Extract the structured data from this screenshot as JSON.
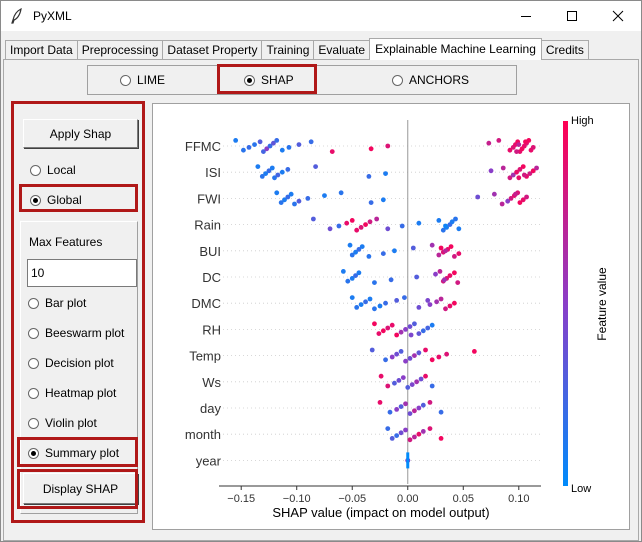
{
  "window": {
    "title": "PyXML"
  },
  "tabs": [
    {
      "label": "Import Data"
    },
    {
      "label": "Preprocessing"
    },
    {
      "label": "Dataset Property"
    },
    {
      "label": "Training"
    },
    {
      "label": "Evaluate"
    },
    {
      "label": "Explainable Machine Learning",
      "active": true
    },
    {
      "label": "Credits"
    }
  ],
  "method_selector": {
    "options": [
      "LIME",
      "SHAP",
      "ANCHORS"
    ],
    "selected": "SHAP"
  },
  "left_panel": {
    "apply_button": "Apply Shap",
    "scope_options": [
      "Local",
      "Global"
    ],
    "scope_selected": "Global",
    "max_features_label": "Max Features",
    "max_features_value": "10",
    "plot_types": [
      "Bar plot",
      "Beeswarm plot",
      "Decision plot",
      "Heatmap plot",
      "Violin plot",
      "Summary plot"
    ],
    "plot_selected": "Summary plot",
    "display_button": "Display SHAP"
  },
  "colors": {
    "highlight": "#b01818",
    "shap_low": "#008bfb",
    "shap_high": "#ff0052"
  },
  "chart_data": {
    "type": "scatter",
    "subtype": "shap-beeswarm",
    "features": [
      "FFMC",
      "ISI",
      "FWI",
      "Rain",
      "BUI",
      "DC",
      "DMC",
      "RH",
      "Temp",
      "Ws",
      "day",
      "month",
      "year"
    ],
    "xlabel": "SHAP value (impact on model output)",
    "xlim": [
      -0.17,
      0.12
    ],
    "xticks": [
      -0.15,
      -0.1,
      -0.05,
      0.0,
      0.05,
      0.1
    ],
    "xtick_labels": [
      "−0.15",
      "−0.10",
      "−0.05",
      "0.00",
      "0.05",
      "0.10"
    ],
    "colorbar": {
      "label": "Feature value",
      "high": "High",
      "low": "Low"
    },
    "series": [
      {
        "feature": "FFMC",
        "points": [
          [
            -0.155,
            0.1
          ],
          [
            -0.148,
            0.15
          ],
          [
            -0.143,
            0.2
          ],
          [
            -0.138,
            0.15
          ],
          [
            -0.133,
            0.3
          ],
          [
            -0.13,
            0.25
          ],
          [
            -0.127,
            0.5
          ],
          [
            -0.124,
            0.2
          ],
          [
            -0.121,
            0.35
          ],
          [
            -0.118,
            0.2
          ],
          [
            -0.113,
            0.1
          ],
          [
            -0.107,
            0.15
          ],
          [
            -0.098,
            0.3
          ],
          [
            -0.087,
            0.2
          ],
          [
            -0.068,
            0.9
          ],
          [
            -0.033,
            0.95
          ],
          [
            -0.018,
            0.85
          ],
          [
            0.073,
            0.75
          ],
          [
            0.082,
            0.8
          ],
          [
            0.092,
            0.9
          ],
          [
            0.095,
            0.85
          ],
          [
            0.097,
            0.9
          ],
          [
            0.099,
            0.95
          ],
          [
            0.101,
            0.9
          ],
          [
            0.103,
            0.95
          ],
          [
            0.105,
            0.9
          ],
          [
            0.107,
            0.85
          ],
          [
            0.109,
            0.95
          ],
          [
            0.111,
            0.9
          ],
          [
            0.113,
            0.85
          ],
          [
            0.1,
            0.7
          ],
          [
            0.106,
            0.95
          ],
          [
            0.098,
            0.8
          ]
        ]
      },
      {
        "feature": "ISI",
        "points": [
          [
            -0.135,
            0.1
          ],
          [
            -0.131,
            0.15
          ],
          [
            -0.128,
            0.1
          ],
          [
            -0.125,
            0.2
          ],
          [
            -0.122,
            0.1
          ],
          [
            -0.12,
            0.15
          ],
          [
            -0.117,
            0.25
          ],
          [
            -0.113,
            0.1
          ],
          [
            -0.108,
            0.2
          ],
          [
            -0.083,
            0.3
          ],
          [
            -0.035,
            0.2
          ],
          [
            -0.02,
            0.1
          ],
          [
            0.075,
            0.5
          ],
          [
            0.086,
            0.7
          ],
          [
            0.092,
            0.8
          ],
          [
            0.095,
            0.6
          ],
          [
            0.098,
            0.9
          ],
          [
            0.101,
            0.85
          ],
          [
            0.104,
            0.95
          ],
          [
            0.107,
            0.9
          ],
          [
            0.11,
            0.8
          ],
          [
            0.113,
            0.95
          ],
          [
            0.116,
            0.7
          ],
          [
            0.1,
            0.9
          ],
          [
            0.105,
            0.8
          ]
        ]
      },
      {
        "feature": "FWI",
        "points": [
          [
            -0.118,
            0.1
          ],
          [
            -0.114,
            0.15
          ],
          [
            -0.111,
            0.1
          ],
          [
            -0.108,
            0.2
          ],
          [
            -0.105,
            0.1
          ],
          [
            -0.102,
            0.15
          ],
          [
            -0.098,
            0.3
          ],
          [
            -0.09,
            0.2
          ],
          [
            -0.075,
            0.1
          ],
          [
            -0.06,
            0.15
          ],
          [
            -0.033,
            0.2
          ],
          [
            -0.022,
            0.1
          ],
          [
            0.063,
            0.4
          ],
          [
            0.078,
            0.6
          ],
          [
            0.085,
            0.7
          ],
          [
            0.09,
            0.5
          ],
          [
            0.093,
            0.8
          ],
          [
            0.096,
            0.9
          ],
          [
            0.099,
            0.85
          ],
          [
            0.101,
            0.95
          ],
          [
            0.104,
            0.9
          ],
          [
            0.107,
            0.8
          ],
          [
            0.097,
            0.75
          ]
        ]
      },
      {
        "feature": "Rain",
        "points": [
          [
            -0.085,
            0.3
          ],
          [
            -0.07,
            0.4
          ],
          [
            -0.062,
            0.2
          ],
          [
            -0.055,
            0.9
          ],
          [
            -0.05,
            0.95
          ],
          [
            -0.046,
            0.9
          ],
          [
            -0.042,
            0.85
          ],
          [
            -0.038,
            0.95
          ],
          [
            -0.034,
            0.8
          ],
          [
            -0.028,
            0.7
          ],
          [
            -0.018,
            0.4
          ],
          [
            -0.005,
            0.2
          ],
          [
            0.01,
            0.1
          ],
          [
            0.028,
            0.1
          ],
          [
            0.032,
            0.15
          ],
          [
            0.035,
            0.1
          ],
          [
            0.038,
            0.2
          ],
          [
            0.04,
            0.1
          ],
          [
            0.043,
            0.15
          ],
          [
            0.046,
            0.1
          ],
          [
            0.034,
            0.05
          ]
        ]
      },
      {
        "feature": "BUI",
        "points": [
          [
            -0.052,
            0.1
          ],
          [
            -0.05,
            0.15
          ],
          [
            -0.047,
            0.1
          ],
          [
            -0.044,
            0.2
          ],
          [
            -0.041,
            0.1
          ],
          [
            -0.035,
            0.15
          ],
          [
            -0.022,
            0.2
          ],
          [
            -0.012,
            0.1
          ],
          [
            0.005,
            0.3
          ],
          [
            0.022,
            0.6
          ],
          [
            0.028,
            0.7
          ],
          [
            0.032,
            0.85
          ],
          [
            0.036,
            0.9
          ],
          [
            0.039,
            0.95
          ],
          [
            0.042,
            0.8
          ],
          [
            0.046,
            0.9
          ],
          [
            0.034,
            0.7
          ],
          [
            0.03,
            0.95
          ]
        ]
      },
      {
        "feature": "DC",
        "points": [
          [
            -0.058,
            0.1
          ],
          [
            -0.054,
            0.15
          ],
          [
            -0.05,
            0.1
          ],
          [
            -0.047,
            0.2
          ],
          [
            -0.044,
            0.1
          ],
          [
            -0.03,
            0.15
          ],
          [
            -0.015,
            0.2
          ],
          [
            0.008,
            0.3
          ],
          [
            0.025,
            0.5
          ],
          [
            0.029,
            0.7
          ],
          [
            0.032,
            0.8
          ],
          [
            0.035,
            0.85
          ],
          [
            0.038,
            0.9
          ],
          [
            0.042,
            0.95
          ],
          [
            0.045,
            0.8
          ],
          [
            0.033,
            0.6
          ]
        ]
      },
      {
        "feature": "DMC",
        "points": [
          [
            -0.05,
            0.1
          ],
          [
            -0.046,
            0.15
          ],
          [
            -0.042,
            0.1
          ],
          [
            -0.038,
            0.2
          ],
          [
            -0.034,
            0.1
          ],
          [
            -0.03,
            0.15
          ],
          [
            -0.025,
            0.1
          ],
          [
            -0.02,
            0.2
          ],
          [
            -0.01,
            0.3
          ],
          [
            -0.003,
            0.2
          ],
          [
            0.01,
            0.4
          ],
          [
            0.02,
            0.5
          ],
          [
            0.026,
            0.6
          ],
          [
            0.03,
            0.7
          ],
          [
            0.034,
            0.8
          ],
          [
            0.038,
            0.9
          ],
          [
            0.042,
            0.95
          ],
          [
            0.018,
            0.45
          ]
        ]
      },
      {
        "feature": "RH",
        "points": [
          [
            -0.03,
            0.95
          ],
          [
            -0.026,
            0.9
          ],
          [
            -0.022,
            0.95
          ],
          [
            -0.018,
            0.85
          ],
          [
            -0.014,
            0.9
          ],
          [
            -0.01,
            0.95
          ],
          [
            -0.006,
            0.6
          ],
          [
            -0.002,
            0.5
          ],
          [
            0.002,
            0.4
          ],
          [
            0.006,
            0.3
          ],
          [
            0.01,
            0.35
          ],
          [
            0.014,
            0.2
          ],
          [
            0.018,
            0.25
          ],
          [
            0.022,
            0.1
          ],
          [
            0.003,
            0.45
          ]
        ]
      },
      {
        "feature": "Temp",
        "points": [
          [
            -0.032,
            0.3
          ],
          [
            -0.02,
            0.2
          ],
          [
            -0.014,
            0.5
          ],
          [
            -0.01,
            0.4
          ],
          [
            -0.006,
            0.3
          ],
          [
            -0.002,
            0.5
          ],
          [
            0.002,
            0.4
          ],
          [
            0.006,
            0.6
          ],
          [
            0.01,
            0.35
          ],
          [
            0.016,
            0.9
          ],
          [
            0.022,
            0.95
          ],
          [
            0.028,
            0.9
          ],
          [
            0.035,
            0.85
          ],
          [
            0.06,
            0.95
          ]
        ]
      },
      {
        "feature": "Ws",
        "points": [
          [
            -0.024,
            0.9
          ],
          [
            -0.018,
            0.85
          ],
          [
            -0.012,
            0.3
          ],
          [
            -0.008,
            0.4
          ],
          [
            -0.004,
            0.5
          ],
          [
            0.0,
            0.3
          ],
          [
            0.004,
            0.45
          ],
          [
            0.008,
            0.6
          ],
          [
            0.012,
            0.4
          ],
          [
            0.016,
            0.9
          ],
          [
            0.022,
            0.2
          ]
        ]
      },
      {
        "feature": "day",
        "points": [
          [
            -0.025,
            0.9
          ],
          [
            -0.016,
            0.2
          ],
          [
            -0.01,
            0.5
          ],
          [
            -0.006,
            0.3
          ],
          [
            -0.002,
            0.6
          ],
          [
            0.002,
            0.4
          ],
          [
            0.006,
            0.7
          ],
          [
            0.01,
            0.5
          ],
          [
            0.014,
            0.3
          ],
          [
            0.02,
            0.8
          ],
          [
            0.03,
            0.2
          ]
        ]
      },
      {
        "feature": "month",
        "points": [
          [
            -0.018,
            0.2
          ],
          [
            -0.014,
            0.3
          ],
          [
            -0.01,
            0.2
          ],
          [
            -0.006,
            0.4
          ],
          [
            -0.002,
            0.5
          ],
          [
            0.002,
            0.8
          ],
          [
            0.006,
            0.7
          ],
          [
            0.01,
            0.9
          ],
          [
            0.014,
            0.6
          ],
          [
            0.02,
            0.85
          ],
          [
            0.03,
            0.95
          ]
        ]
      },
      {
        "feature": "year",
        "points": [
          [
            0.0,
            0.5
          ],
          [
            0.0,
            0.5
          ],
          [
            0.0,
            0.5
          ]
        ]
      }
    ]
  }
}
